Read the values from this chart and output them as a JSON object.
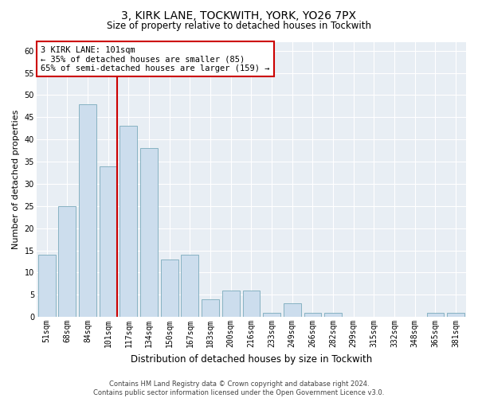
{
  "title1": "3, KIRK LANE, TOCKWITH, YORK, YO26 7PX",
  "title2": "Size of property relative to detached houses in Tockwith",
  "xlabel": "Distribution of detached houses by size in Tockwith",
  "ylabel": "Number of detached properties",
  "categories": [
    "51sqm",
    "68sqm",
    "84sqm",
    "101sqm",
    "117sqm",
    "134sqm",
    "150sqm",
    "167sqm",
    "183sqm",
    "200sqm",
    "216sqm",
    "233sqm",
    "249sqm",
    "266sqm",
    "282sqm",
    "299sqm",
    "315sqm",
    "332sqm",
    "348sqm",
    "365sqm",
    "381sqm"
  ],
  "values": [
    14,
    25,
    48,
    34,
    43,
    38,
    13,
    14,
    4,
    6,
    6,
    1,
    3,
    1,
    1,
    0,
    0,
    0,
    0,
    1,
    1
  ],
  "bar_color": "#ccdded",
  "bar_edge_color": "#7aaabb",
  "marker_index": 3,
  "marker_color": "#cc0000",
  "ylim": [
    0,
    62
  ],
  "yticks": [
    0,
    5,
    10,
    15,
    20,
    25,
    30,
    35,
    40,
    45,
    50,
    55,
    60
  ],
  "annotation_title": "3 KIRK LANE: 101sqm",
  "annotation_line1": "← 35% of detached houses are smaller (85)",
  "annotation_line2": "65% of semi-detached houses are larger (159) →",
  "annotation_box_color": "#ffffff",
  "annotation_box_edge": "#cc0000",
  "footer1": "Contains HM Land Registry data © Crown copyright and database right 2024.",
  "footer2": "Contains public sector information licensed under the Open Government Licence v3.0.",
  "fig_background": "#ffffff",
  "plot_background": "#e8eef4",
  "grid_color": "#ffffff",
  "title1_fontsize": 10,
  "title2_fontsize": 8.5,
  "ylabel_fontsize": 8,
  "xlabel_fontsize": 8.5,
  "tick_fontsize": 7,
  "annotation_fontsize": 7.5,
  "footer_fontsize": 6
}
